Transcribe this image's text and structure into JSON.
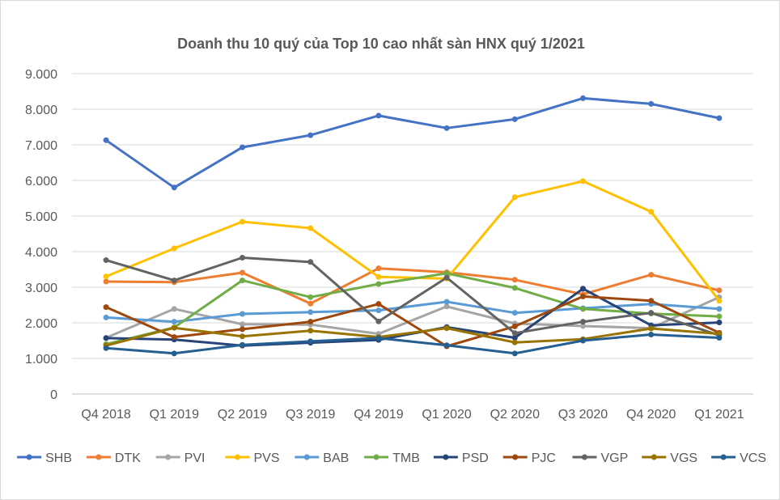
{
  "chart_data": {
    "type": "line",
    "title": "Doanh thu 10 quý của Top 10 cao nhất sàn HNX quý 1/2021",
    "xlabel": "",
    "ylabel": "",
    "categories": [
      "Q4 2018",
      "Q1 2019",
      "Q2 2019",
      "Q3 2019",
      "Q4 2019",
      "Q1 2020",
      "Q2 2020",
      "Q3 2020",
      "Q4 2020",
      "Q1 2021"
    ],
    "ylim": [
      0,
      9000
    ],
    "yticks": [
      0,
      1000,
      2000,
      3000,
      4000,
      5000,
      6000,
      7000,
      8000,
      9000
    ],
    "ytick_labels": [
      "0",
      "1.000",
      "2.000",
      "3.000",
      "4.000",
      "5.000",
      "6.000",
      "7.000",
      "8.000",
      "9.000"
    ],
    "grid": true,
    "legend_position": "bottom",
    "series": [
      {
        "name": "SHB",
        "color": "#4472C4",
        "values": [
          7130,
          5800,
          6930,
          7270,
          7820,
          7470,
          7720,
          8310,
          8150,
          7750
        ]
      },
      {
        "name": "DTK",
        "color": "#ED7D31",
        "values": [
          3160,
          3140,
          3410,
          2540,
          3530,
          3420,
          3210,
          2800,
          3350,
          2910
        ]
      },
      {
        "name": "PVI",
        "color": "#A5A5A5",
        "values": [
          1580,
          2390,
          1960,
          1950,
          1690,
          2460,
          1980,
          1910,
          1850,
          2720
        ]
      },
      {
        "name": "PVS",
        "color": "#FFC000",
        "values": [
          3300,
          4090,
          4840,
          4660,
          3290,
          3240,
          5530,
          5980,
          5120,
          2620
        ]
      },
      {
        "name": "BAB",
        "color": "#5B9BD5",
        "values": [
          2150,
          2030,
          2250,
          2300,
          2350,
          2590,
          2280,
          2410,
          2530,
          2390
        ]
      },
      {
        "name": "TMB",
        "color": "#70AD47",
        "values": [
          1400,
          1870,
          3190,
          2720,
          3090,
          3390,
          2980,
          2390,
          2260,
          2180
        ]
      },
      {
        "name": "PSD",
        "color": "#264478",
        "values": [
          1570,
          1530,
          1360,
          1440,
          1520,
          1880,
          1580,
          2960,
          1930,
          2010
        ]
      },
      {
        "name": "PJC",
        "color": "#9E480E",
        "values": [
          2440,
          1600,
          1820,
          2030,
          2530,
          1340,
          1900,
          2740,
          2620,
          1720
        ]
      },
      {
        "name": "VGP",
        "color": "#636363",
        "values": [
          3760,
          3190,
          3830,
          3710,
          2040,
          3270,
          1710,
          2030,
          2280,
          1650
        ]
      },
      {
        "name": "VGS",
        "color": "#997300",
        "values": [
          1360,
          1860,
          1620,
          1780,
          1600,
          1850,
          1450,
          1540,
          1840,
          1690
        ]
      },
      {
        "name": "VCS",
        "color": "#255E91",
        "values": [
          1290,
          1140,
          1380,
          1480,
          1570,
          1370,
          1140,
          1500,
          1670,
          1580
        ]
      }
    ]
  }
}
